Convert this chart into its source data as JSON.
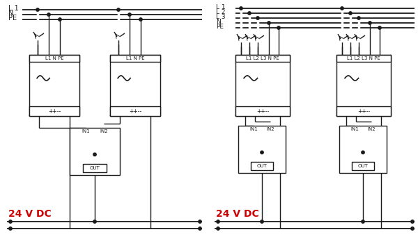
{
  "bg_color": "#ffffff",
  "line_color": "#1a1a1a",
  "red_color": "#cc0000",
  "left_bus_labels": [
    "L 1",
    "N",
    "PE"
  ],
  "right_bus_labels": [
    "L 1",
    "L 2",
    "L 3",
    "N",
    "PE"
  ],
  "psu_left_label": "L1 N PE",
  "psu_right_label": "L1 L2 L3 N PE",
  "psu_bottom_label": "++--",
  "mod_in_label": "IN1  IN2",
  "mod_out_label": "OUT",
  "bottom_label": "24 V DC"
}
